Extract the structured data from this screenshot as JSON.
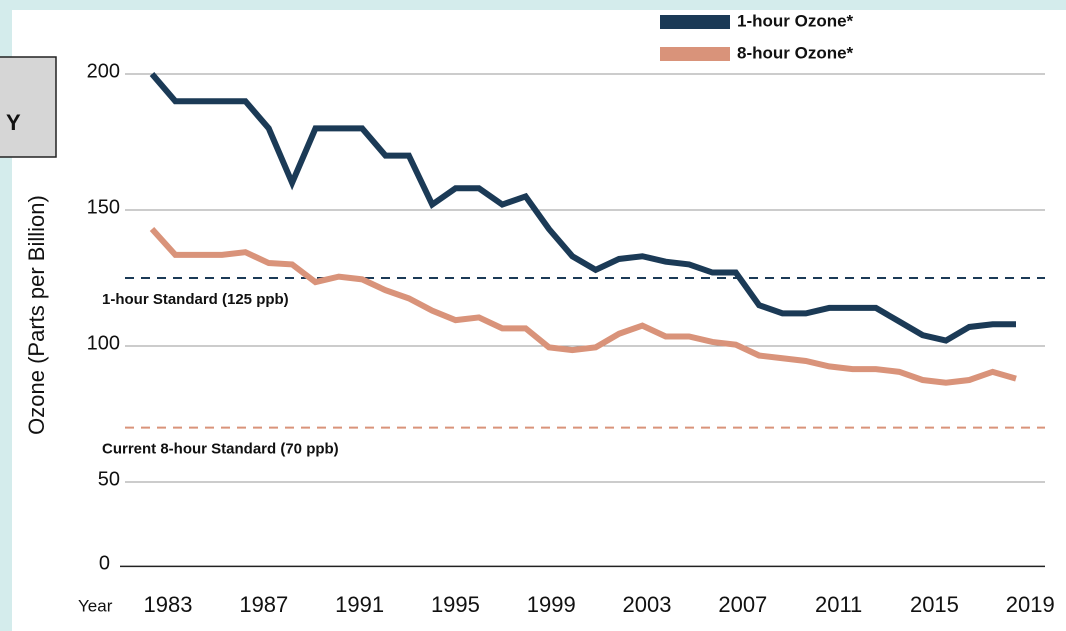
{
  "chart_data": {
    "type": "line",
    "y_label": "Ozone (Parts per Billion)",
    "x_label": "Year",
    "side_label": "Y",
    "baseline_label": "0",
    "x": [
      1983,
      1984,
      1985,
      1986,
      1987,
      1988,
      1989,
      1990,
      1991,
      1992,
      1993,
      1994,
      1995,
      1996,
      1997,
      1998,
      1999,
      2000,
      2001,
      2002,
      2003,
      2004,
      2005,
      2006,
      2007,
      2008,
      2009,
      2010,
      2011,
      2012,
      2013,
      2014,
      2015,
      2016,
      2017,
      2018,
      2019,
      2020
    ],
    "series": [
      {
        "name": "1-hour Ozone*",
        "color": "#1b3a56",
        "values": [
          200,
          190,
          190,
          190,
          190,
          180,
          160,
          180,
          180,
          180,
          170,
          170,
          152,
          158,
          158,
          152,
          155,
          143,
          133,
          128,
          132,
          133,
          131,
          130,
          127,
          127,
          115,
          112,
          112,
          114,
          114,
          114,
          109,
          104,
          102,
          107,
          108,
          108
        ]
      },
      {
        "name": "8-hour Ozone*",
        "color": "#d9937a",
        "values": [
          143,
          133.5,
          133.5,
          133.5,
          134.5,
          130.5,
          130,
          123.5,
          125.5,
          124.5,
          120.5,
          117.5,
          113,
          109.5,
          110.5,
          106.5,
          106.5,
          99.5,
          98.5,
          99.5,
          104.5,
          107.5,
          103.5,
          103.5,
          101.5,
          100.5,
          96.5,
          95.5,
          94.5,
          92.5,
          91.5,
          91.5,
          90.5,
          87.5,
          86.5,
          87.5,
          90.5,
          88
        ]
      }
    ],
    "reference_lines": [
      {
        "value": 125,
        "label": "1-hour Standard (125 ppb)",
        "color": "#1b3a56"
      },
      {
        "value": 70,
        "label": "Current 8-hour Standard (70 ppb)",
        "color": "#d9937a"
      }
    ],
    "xlim": [
      1983,
      2020
    ],
    "xticks": [
      1983,
      1987,
      1991,
      1995,
      1999,
      2003,
      2007,
      2011,
      2015,
      2019
    ],
    "ylim": [
      19,
      205
    ],
    "yticks": [
      50,
      100,
      150,
      200
    ],
    "grid": true
  }
}
